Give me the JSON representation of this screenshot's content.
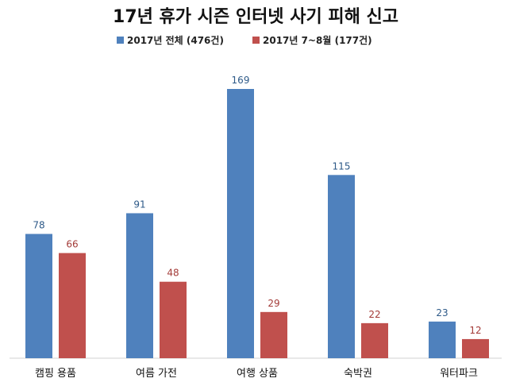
{
  "chart_data": {
    "type": "bar",
    "title": "17년 휴가 시즌 인터넷 사기 피해 신고",
    "categories": [
      "캠핑 용품",
      "여름 가전",
      "여행 상품",
      "숙박권",
      "워터파크"
    ],
    "series": [
      {
        "name": "2017년 전체 (476건)",
        "color": "#4f81bd",
        "label_color": "#2e5a88",
        "values": [
          78,
          91,
          169,
          115,
          23
        ]
      },
      {
        "name": "2017년 7~8월 (177건)",
        "color": "#c0504d",
        "label_color": "#a33b38",
        "values": [
          66,
          48,
          29,
          22,
          12
        ]
      }
    ],
    "ylim": [
      0,
      169
    ],
    "grid": false,
    "legend_position": "top"
  }
}
